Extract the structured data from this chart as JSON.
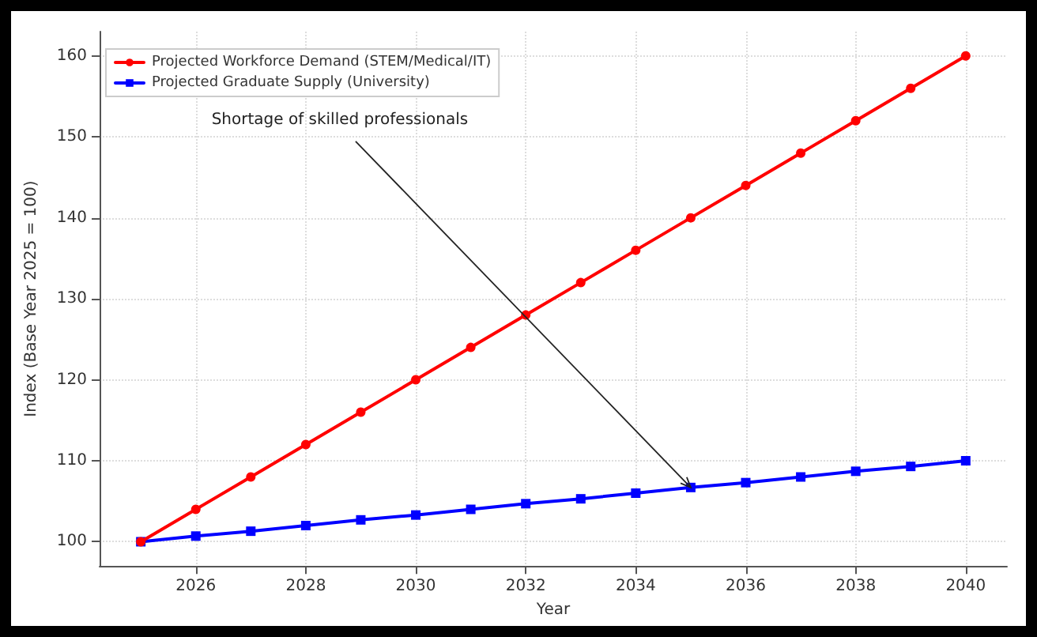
{
  "chart_data": {
    "type": "line",
    "xlabel": "Year",
    "ylabel": "Index (Base Year 2025 = 100)",
    "x": [
      2025,
      2026,
      2027,
      2028,
      2029,
      2030,
      2031,
      2032,
      2033,
      2034,
      2035,
      2036,
      2037,
      2038,
      2039,
      2040
    ],
    "series": [
      {
        "name": "Projected Workforce Demand (STEM/Medical/IT)",
        "color": "#ff0000",
        "marker": "circle",
        "values": [
          100,
          104,
          108,
          112,
          116,
          120,
          124,
          128,
          132,
          136,
          140,
          144,
          148,
          152,
          156,
          160
        ]
      },
      {
        "name": "Projected Graduate Supply (University)",
        "color": "#0000ff",
        "marker": "square",
        "values": [
          100,
          100.7,
          101.3,
          102,
          102.7,
          103.3,
          104,
          104.7,
          105.3,
          106,
          106.7,
          107.3,
          108,
          108.7,
          109.3,
          110
        ]
      }
    ],
    "xlim": [
      2024.25,
      2040.75
    ],
    "xticks": [
      2026,
      2028,
      2030,
      2032,
      2034,
      2036,
      2038,
      2040
    ],
    "ylim": [
      97,
      163
    ],
    "yticks": [
      100,
      110,
      120,
      130,
      140,
      150,
      160
    ],
    "annotations": [
      {
        "text": "Shortage of skilled professionals",
        "x": 2035,
        "y": 106.7
      }
    ],
    "grid": true,
    "legend": "top left",
    "line_style": "solid"
  }
}
